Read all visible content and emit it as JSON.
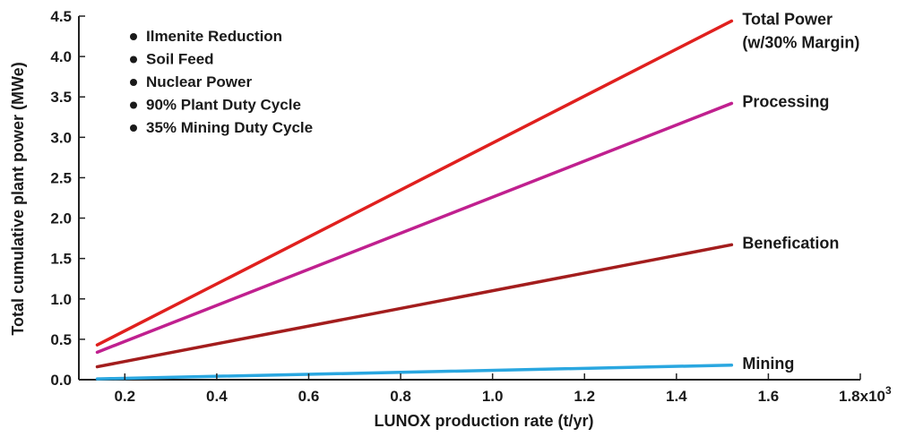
{
  "chart_data": {
    "type": "line",
    "xlabel": "LUNOX production rate (t/yr)",
    "ylabel": "Total cumulative plant power (MWe)",
    "xlim": [
      0.1,
      1.8
    ],
    "ylim": [
      0,
      4.5
    ],
    "x_ticks": [
      0.2,
      0.4,
      0.6,
      0.8,
      1.0,
      1.2,
      1.4,
      1.6,
      1.8
    ],
    "x_tick_labels": [
      "0.2",
      "0.4",
      "0.6",
      "0.8",
      "1.0",
      "1.2",
      "1.4",
      "1.6",
      "1.8x10"
    ],
    "x_multiplier_exponent": "3",
    "y_ticks": [
      0,
      0.5,
      1.0,
      1.5,
      2.0,
      2.5,
      3.0,
      3.5,
      4.0,
      4.5
    ],
    "y_tick_labels": [
      "0.0",
      "0.5",
      "1.0",
      "1.5",
      "2.0",
      "2.5",
      "3.0",
      "3.5",
      "4.0",
      "4.5"
    ],
    "notes": [
      "Ilmenite Reduction",
      "Soil Feed",
      "Nuclear Power",
      "90% Plant Duty Cycle",
      "35% Mining Duty Cycle"
    ],
    "series": [
      {
        "name": "Total Power",
        "label_lines": [
          "Total Power",
          "(w/30% Margin)"
        ],
        "color": "#e0201e",
        "x": [
          0.14,
          1.52
        ],
        "y": [
          0.43,
          4.44
        ]
      },
      {
        "name": "Processing",
        "label_lines": [
          "Processing"
        ],
        "color": "#c0208f",
        "x": [
          0.14,
          1.52
        ],
        "y": [
          0.34,
          3.42
        ]
      },
      {
        "name": "Benefication",
        "label_lines": [
          "Benefication"
        ],
        "color": "#a31d1d",
        "x": [
          0.14,
          1.52
        ],
        "y": [
          0.16,
          1.67
        ]
      },
      {
        "name": "Mining",
        "label_lines": [
          "Mining"
        ],
        "color": "#2aa7e0",
        "x": [
          0.14,
          1.52
        ],
        "y": [
          0.01,
          0.18
        ]
      }
    ],
    "grid": false
  }
}
